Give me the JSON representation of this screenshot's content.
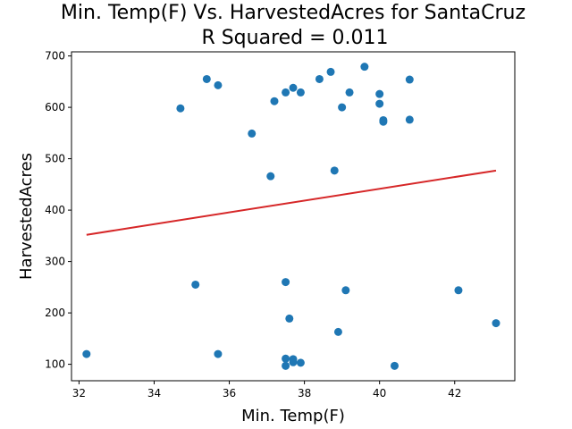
{
  "chart_data": {
    "type": "scatter",
    "title": "Min. Temp(F) Vs. HarvestedAcres for SantaCruz",
    "subtitle": "R Squared =  0.011",
    "xlabel": "Min. Temp(F)",
    "ylabel": "HarvestedAcres",
    "xlim": [
      31.8,
      43.6
    ],
    "ylim": [
      68,
      708
    ],
    "xticks": [
      32,
      34,
      36,
      38,
      40,
      42
    ],
    "yticks": [
      100,
      200,
      300,
      400,
      500,
      600,
      700
    ],
    "grid": false,
    "point_color": "#1f77b4",
    "line_color": "#d62728",
    "points": [
      {
        "x": 32.2,
        "y": 120
      },
      {
        "x": 34.7,
        "y": 598
      },
      {
        "x": 35.1,
        "y": 255
      },
      {
        "x": 35.4,
        "y": 655
      },
      {
        "x": 35.7,
        "y": 643
      },
      {
        "x": 35.7,
        "y": 120
      },
      {
        "x": 36.6,
        "y": 549
      },
      {
        "x": 37.1,
        "y": 466
      },
      {
        "x": 37.2,
        "y": 612
      },
      {
        "x": 37.5,
        "y": 629
      },
      {
        "x": 37.7,
        "y": 638
      },
      {
        "x": 37.9,
        "y": 629
      },
      {
        "x": 37.5,
        "y": 260
      },
      {
        "x": 37.6,
        "y": 189
      },
      {
        "x": 37.5,
        "y": 111
      },
      {
        "x": 37.7,
        "y": 110
      },
      {
        "x": 37.7,
        "y": 104
      },
      {
        "x": 37.5,
        "y": 97
      },
      {
        "x": 37.9,
        "y": 103
      },
      {
        "x": 38.4,
        "y": 655
      },
      {
        "x": 38.7,
        "y": 669
      },
      {
        "x": 38.8,
        "y": 477
      },
      {
        "x": 38.9,
        "y": 163
      },
      {
        "x": 39.0,
        "y": 600
      },
      {
        "x": 39.1,
        "y": 244
      },
      {
        "x": 39.2,
        "y": 629
      },
      {
        "x": 39.6,
        "y": 679
      },
      {
        "x": 40.0,
        "y": 626
      },
      {
        "x": 40.0,
        "y": 607
      },
      {
        "x": 40.1,
        "y": 575
      },
      {
        "x": 40.1,
        "y": 572
      },
      {
        "x": 40.4,
        "y": 97
      },
      {
        "x": 40.8,
        "y": 654
      },
      {
        "x": 40.8,
        "y": 576
      },
      {
        "x": 42.1,
        "y": 244
      },
      {
        "x": 43.1,
        "y": 180
      }
    ],
    "fit_line": {
      "x": [
        32.2,
        43.1
      ],
      "y": [
        352,
        477
      ]
    }
  }
}
